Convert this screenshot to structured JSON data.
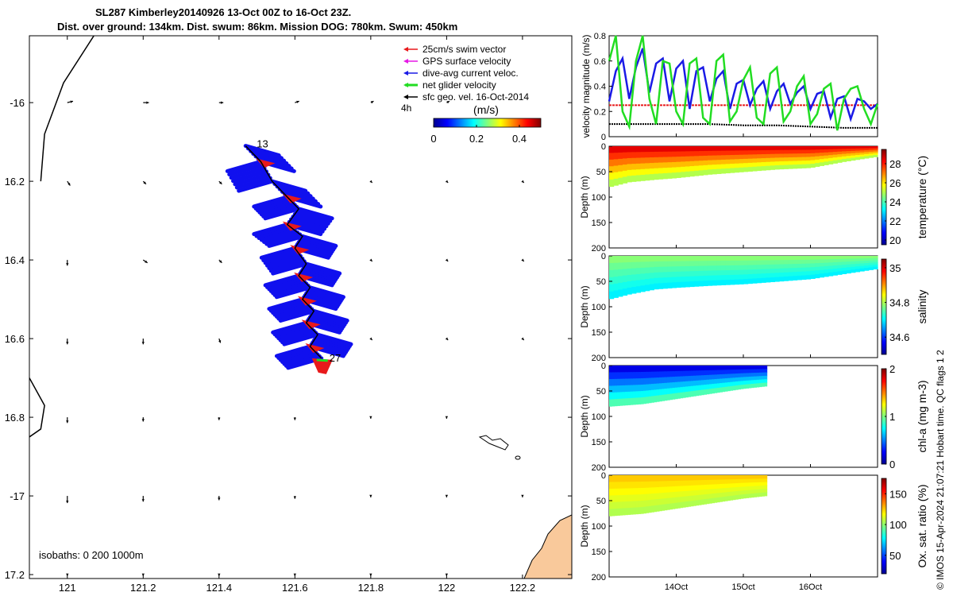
{
  "title": {
    "line1": "SL287 Kimberley20140926 13-Oct 00Z to 16-Oct 23Z.",
    "line2": "Dist. over ground: 134km. Dist. swum: 86km. Mission DOG: 780km. Swum: 450km"
  },
  "colors": {
    "swim": "#e8191b",
    "gps": "#e619e6",
    "diveavg": "#1a1ae6",
    "net": "#22dd22",
    "sfc": "#000000",
    "track": "#000000",
    "land": "#f9c99b",
    "glider_blue": "#1010ee"
  },
  "chart_data": [
    {
      "type": "scatter",
      "name": "glider-track-map",
      "xlabel": "",
      "ylabel": "",
      "xlim": [
        120.9,
        122.33
      ],
      "ylim": [
        -17.21,
        -15.83
      ],
      "x_ticks": [
        121,
        121.2,
        121.4,
        121.6,
        121.8,
        122,
        122.2
      ],
      "y_ticks": [
        -16,
        -16.2,
        -16.4,
        -16.6,
        -16.8,
        -17,
        -17.2
      ],
      "x_tick_labels": [
        "121",
        "121.2",
        "121.4",
        "121.6",
        "121.8",
        "122",
        "122.2"
      ],
      "y_tick_labels": [
        "-16",
        "16.2",
        "16.4",
        "16.6",
        "16.8",
        "-17",
        "17.2"
      ],
      "start_label": "13",
      "end_label": "27",
      "time_scale_label": "4h",
      "isobaths_label": "isobaths: 0   200  1000m",
      "legend": [
        {
          "label": "25cm/s swim vector",
          "color": "#e8191b"
        },
        {
          "label": "GPS surface velocity",
          "color": "#e619e6"
        },
        {
          "label": "dive-avg current veloc.",
          "color": "#1a1ae6"
        },
        {
          "label": "net glider velocity",
          "color": "#22dd22"
        },
        {
          "label": "sfc geo. vel. 16-Oct-2014",
          "color": "#000000"
        }
      ],
      "colorbar": {
        "label": "(m/s)",
        "ticks": [
          0,
          0.2,
          0.4
        ],
        "tick_labels": [
          "0",
          "0.2",
          "0.4"
        ],
        "range": [
          0,
          0.5
        ]
      },
      "track": [
        [
          121.47,
          -16.11
        ],
        [
          121.51,
          -16.15
        ],
        [
          121.54,
          -16.2
        ],
        [
          121.58,
          -16.24
        ],
        [
          121.61,
          -16.27
        ],
        [
          121.58,
          -16.31
        ],
        [
          121.62,
          -16.34
        ],
        [
          121.6,
          -16.37
        ],
        [
          121.63,
          -16.41
        ],
        [
          121.61,
          -16.44
        ],
        [
          121.64,
          -16.47
        ],
        [
          121.62,
          -16.5
        ],
        [
          121.65,
          -16.53
        ],
        [
          121.63,
          -16.56
        ],
        [
          121.66,
          -16.59
        ],
        [
          121.64,
          -16.62
        ],
        [
          121.67,
          -16.65
        ]
      ],
      "geo_vectors": [
        {
          "lon": 121.0,
          "lat": -16.0,
          "u": 0.04,
          "v": 0.01
        },
        {
          "lon": 121.2,
          "lat": -16.0,
          "u": 0.04,
          "v": 0.0
        },
        {
          "lon": 121.4,
          "lat": -16.0,
          "u": 0.03,
          "v": 0.0
        },
        {
          "lon": 121.6,
          "lat": -16.0,
          "u": 0.03,
          "v": 0.01
        },
        {
          "lon": 121.8,
          "lat": -16.0,
          "u": 0.02,
          "v": 0.01
        },
        {
          "lon": 122.0,
          "lat": -16.0,
          "u": 0.02,
          "v": 0.01
        },
        {
          "lon": 121.0,
          "lat": -16.2,
          "u": 0.02,
          "v": -0.03
        },
        {
          "lon": 121.2,
          "lat": -16.2,
          "u": 0.02,
          "v": -0.02
        },
        {
          "lon": 121.4,
          "lat": -16.2,
          "u": 0.02,
          "v": -0.02
        },
        {
          "lon": 121.8,
          "lat": -16.2,
          "u": 0.01,
          "v": -0.01
        },
        {
          "lon": 122.0,
          "lat": -16.2,
          "u": 0.01,
          "v": -0.01
        },
        {
          "lon": 122.2,
          "lat": -16.2,
          "u": 0.01,
          "v": -0.01
        },
        {
          "lon": 121.0,
          "lat": -16.4,
          "u": 0.0,
          "v": -0.04
        },
        {
          "lon": 121.2,
          "lat": -16.4,
          "u": 0.03,
          "v": -0.02
        },
        {
          "lon": 121.4,
          "lat": -16.4,
          "u": 0.02,
          "v": -0.02
        },
        {
          "lon": 121.8,
          "lat": -16.4,
          "u": 0.01,
          "v": -0.01
        },
        {
          "lon": 122.0,
          "lat": -16.4,
          "u": 0.01,
          "v": -0.01
        },
        {
          "lon": 122.2,
          "lat": -16.4,
          "u": 0.01,
          "v": -0.01
        },
        {
          "lon": 121.0,
          "lat": -16.6,
          "u": 0.0,
          "v": -0.04
        },
        {
          "lon": 121.2,
          "lat": -16.6,
          "u": 0.0,
          "v": -0.04
        },
        {
          "lon": 121.4,
          "lat": -16.6,
          "u": 0.01,
          "v": -0.03
        },
        {
          "lon": 121.8,
          "lat": -16.6,
          "u": 0.01,
          "v": -0.01
        },
        {
          "lon": 122.0,
          "lat": -16.6,
          "u": 0.01,
          "v": -0.01
        },
        {
          "lon": 122.2,
          "lat": -16.6,
          "u": 0.01,
          "v": -0.01
        },
        {
          "lon": 121.0,
          "lat": -16.8,
          "u": 0.0,
          "v": -0.04
        },
        {
          "lon": 121.2,
          "lat": -16.8,
          "u": 0.0,
          "v": -0.03
        },
        {
          "lon": 121.4,
          "lat": -16.8,
          "u": 0.0,
          "v": -0.02
        },
        {
          "lon": 121.6,
          "lat": -16.8,
          "u": 0.0,
          "v": -0.02
        },
        {
          "lon": 121.8,
          "lat": -16.8,
          "u": 0.0,
          "v": -0.01
        },
        {
          "lon": 122.0,
          "lat": -16.8,
          "u": 0.0,
          "v": -0.01
        },
        {
          "lon": 121.0,
          "lat": -17.0,
          "u": 0.0,
          "v": -0.05
        },
        {
          "lon": 121.2,
          "lat": -17.0,
          "u": 0.0,
          "v": -0.04
        },
        {
          "lon": 121.4,
          "lat": -17.0,
          "u": 0.0,
          "v": -0.03
        },
        {
          "lon": 121.6,
          "lat": -17.0,
          "u": 0.0,
          "v": -0.02
        },
        {
          "lon": 121.8,
          "lat": -17.0,
          "u": 0.0,
          "v": -0.01
        },
        {
          "lon": 122.0,
          "lat": -17.0,
          "u": 0.0,
          "v": -0.01
        },
        {
          "lon": 122.2,
          "lat": -17.0,
          "u": 0.0,
          "v": -0.01
        },
        {
          "lon": 121.0,
          "lat": -17.2,
          "u": 0.0,
          "v": -0.01
        },
        {
          "lon": 121.2,
          "lat": -17.2,
          "u": 0.0,
          "v": -0.01
        },
        {
          "lon": 121.4,
          "lat": -17.2,
          "u": 0.0,
          "v": -0.01
        },
        {
          "lon": 121.6,
          "lat": -17.2,
          "u": 0.0,
          "v": -0.01
        },
        {
          "lon": 121.8,
          "lat": -17.2,
          "u": 0.0,
          "v": -0.01
        },
        {
          "lon": 122.0,
          "lat": -17.2,
          "u": 0.0,
          "v": -0.01
        }
      ],
      "coastline_west": [
        [
          121.07,
          -15.83
        ],
        [
          120.99,
          -15.95
        ],
        [
          120.94,
          -16.08
        ],
        [
          120.93,
          -16.2
        ]
      ],
      "coastline_southwest": [
        [
          120.9,
          -16.7
        ],
        [
          120.94,
          -16.77
        ],
        [
          120.93,
          -16.83
        ],
        [
          120.9,
          -16.85
        ]
      ]
    },
    {
      "type": "line",
      "name": "velocity-magnitude",
      "ylabel": "velocity magnitude (m/s)",
      "xlim": [
        13.0,
        17.0
      ],
      "ylim": [
        0,
        0.8
      ],
      "y_ticks": [
        0,
        0.2,
        0.4,
        0.6,
        0.8
      ],
      "y_tick_labels": [
        "0",
        "0.2",
        "0.4",
        "0.6",
        "0.8"
      ],
      "series": [
        {
          "name": "swim",
          "color": "#e8191b",
          "x": [
            13.0,
            17.0
          ],
          "y": [
            0.25,
            0.25
          ]
        },
        {
          "name": "sfc geo",
          "color": "#000000",
          "x": [
            13.0,
            13.5,
            14.0,
            14.5,
            15.0,
            15.5,
            16.0,
            16.5,
            17.0
          ],
          "y": [
            0.1,
            0.1,
            0.1,
            0.1,
            0.09,
            0.09,
            0.08,
            0.07,
            0.07
          ]
        },
        {
          "name": "dive-avg",
          "color": "#1a1ae6",
          "x": [
            13.0,
            13.1,
            13.2,
            13.3,
            13.4,
            13.5,
            13.6,
            13.7,
            13.8,
            13.9,
            14.0,
            14.1,
            14.2,
            14.3,
            14.4,
            14.5,
            14.6,
            14.7,
            14.8,
            14.9,
            15.0,
            15.1,
            15.2,
            15.3,
            15.4,
            15.5,
            15.6,
            15.7,
            15.8,
            15.9,
            16.0,
            16.1,
            16.2,
            16.3,
            16.4,
            16.5,
            16.6,
            16.7,
            16.8,
            16.9,
            17.0
          ],
          "y": [
            0.28,
            0.52,
            0.62,
            0.3,
            0.55,
            0.7,
            0.35,
            0.58,
            0.62,
            0.28,
            0.54,
            0.6,
            0.22,
            0.52,
            0.55,
            0.28,
            0.46,
            0.52,
            0.22,
            0.42,
            0.45,
            0.25,
            0.38,
            0.44,
            0.22,
            0.36,
            0.42,
            0.26,
            0.35,
            0.4,
            0.22,
            0.34,
            0.36,
            0.15,
            0.3,
            0.32,
            0.14,
            0.3,
            0.28,
            0.22,
            0.26
          ]
        },
        {
          "name": "net",
          "color": "#22dd22",
          "x": [
            13.0,
            13.1,
            13.2,
            13.3,
            13.4,
            13.5,
            13.6,
            13.7,
            13.8,
            13.9,
            14.0,
            14.1,
            14.2,
            14.3,
            14.4,
            14.5,
            14.6,
            14.7,
            14.8,
            14.9,
            15.0,
            15.1,
            15.2,
            15.3,
            15.4,
            15.5,
            15.6,
            15.7,
            15.8,
            15.9,
            16.0,
            16.1,
            16.2,
            16.3,
            16.4,
            16.5,
            16.6,
            16.7,
            16.8,
            16.9,
            17.0
          ],
          "y": [
            0.6,
            0.8,
            0.2,
            0.08,
            0.6,
            0.8,
            0.3,
            0.1,
            0.6,
            0.58,
            0.2,
            0.1,
            0.58,
            0.62,
            0.15,
            0.1,
            0.6,
            0.65,
            0.12,
            0.2,
            0.45,
            0.55,
            0.15,
            0.1,
            0.5,
            0.55,
            0.12,
            0.2,
            0.4,
            0.48,
            0.1,
            0.18,
            0.38,
            0.42,
            0.05,
            0.3,
            0.38,
            0.4,
            0.22,
            0.1,
            0.26
          ]
        }
      ]
    },
    {
      "type": "heatmap",
      "name": "temperature-section",
      "ylabel": "Depth (m)",
      "cbar_label": "temperature (°C)",
      "xlim": [
        13.0,
        17.0
      ],
      "ylim": [
        200,
        0
      ],
      "y_ticks": [
        0,
        50,
        100,
        150,
        200
      ],
      "y_tick_labels": [
        "0",
        "50",
        "100",
        "150",
        "200"
      ],
      "cbar_ticks": [
        20,
        22,
        24,
        26,
        28
      ],
      "cbar_tick_labels": [
        "20",
        "22",
        "24",
        "26",
        "28"
      ],
      "cbar_range": [
        19.5,
        29.5
      ],
      "end_day": 17.0,
      "bottom_depth": [
        [
          13.0,
          80
        ],
        [
          13.3,
          70
        ],
        [
          13.7,
          65
        ],
        [
          14.0,
          62
        ],
        [
          14.5,
          55
        ],
        [
          15.0,
          50
        ],
        [
          15.5,
          45
        ],
        [
          16.0,
          42
        ],
        [
          16.5,
          30
        ],
        [
          17.0,
          20
        ]
      ],
      "surface_value": 28.5,
      "bottom_value": 25.0
    },
    {
      "type": "heatmap",
      "name": "salinity-section",
      "ylabel": "Depth (m)",
      "cbar_label": "salinity",
      "xlim": [
        13.0,
        17.0
      ],
      "ylim": [
        200,
        0
      ],
      "y_ticks": [
        0,
        50,
        100,
        150,
        200
      ],
      "y_tick_labels": [
        "0",
        "50",
        "100",
        "150",
        "200"
      ],
      "cbar_ticks": [
        34.6,
        34.8,
        35
      ],
      "cbar_tick_labels": [
        "34.6",
        "34.8",
        "35"
      ],
      "cbar_range": [
        34.5,
        35.05
      ],
      "end_day": 17.0,
      "bottom_depth": [
        [
          13.0,
          85
        ],
        [
          13.3,
          75
        ],
        [
          13.7,
          65
        ],
        [
          14.0,
          62
        ],
        [
          14.5,
          58
        ],
        [
          15.0,
          55
        ],
        [
          15.5,
          50
        ],
        [
          16.0,
          45
        ],
        [
          16.5,
          35
        ],
        [
          17.0,
          25
        ]
      ],
      "surface_value": 34.78,
      "bottom_value": 34.7
    },
    {
      "type": "heatmap",
      "name": "chlorophyll-section",
      "ylabel": "Depth (m)",
      "cbar_label": "chl-a (mg m-3)",
      "xlim": [
        13.0,
        17.0
      ],
      "ylim": [
        200,
        0
      ],
      "y_ticks": [
        0,
        50,
        100,
        150,
        200
      ],
      "y_tick_labels": [
        "0",
        "50",
        "100",
        "150",
        "200"
      ],
      "cbar_ticks": [
        0,
        1,
        2
      ],
      "cbar_tick_labels": [
        "0",
        "1",
        "2"
      ],
      "cbar_range": [
        0,
        2
      ],
      "end_day": 15.35,
      "bottom_depth": [
        [
          13.0,
          80
        ],
        [
          13.5,
          75
        ],
        [
          14.0,
          65
        ],
        [
          14.5,
          55
        ],
        [
          15.0,
          45
        ],
        [
          15.35,
          40
        ]
      ],
      "surface_value": 0.2,
      "bottom_value": 0.9
    },
    {
      "type": "heatmap",
      "name": "oxygen-section",
      "ylabel": "Depth (m)",
      "cbar_label": "Ox. sat. ratio (%)",
      "xlim": [
        13.0,
        17.0
      ],
      "ylim": [
        200,
        0
      ],
      "y_ticks": [
        0,
        50,
        100,
        150,
        200
      ],
      "y_tick_labels": [
        "0",
        "50",
        "100",
        "150",
        "200"
      ],
      "cbar_ticks": [
        50,
        100,
        150
      ],
      "cbar_tick_labels": [
        "50",
        "100",
        "150"
      ],
      "cbar_range": [
        20,
        175
      ],
      "end_day": 15.35,
      "bottom_depth": [
        [
          13.0,
          80
        ],
        [
          13.5,
          75
        ],
        [
          14.0,
          65
        ],
        [
          14.5,
          55
        ],
        [
          15.0,
          45
        ],
        [
          15.35,
          40
        ]
      ],
      "surface_value": 125,
      "bottom_value": 105
    }
  ],
  "time_axis": {
    "ticks": [
      14.0,
      15.0,
      16.0
    ],
    "tick_labels": [
      "14Oct",
      "15Oct",
      "16Oct"
    ]
  },
  "credit": "© IMOS 15-Apr-2024 21:07:21 Hobart time. QC flags 1  2"
}
